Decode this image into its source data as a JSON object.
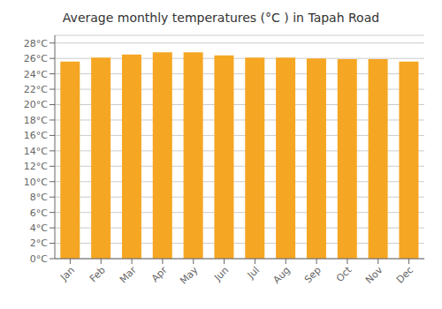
{
  "chart_data": {
    "type": "bar",
    "title": "Average monthly temperatures (°C ) in Tapah Road",
    "categories": [
      "Jan",
      "Feb",
      "Mar",
      "Apr",
      "May",
      "Jun",
      "Jul",
      "Aug",
      "Sep",
      "Oct",
      "Nov",
      "Dec"
    ],
    "values": [
      25.6,
      26.1,
      26.5,
      26.8,
      26.8,
      26.4,
      26.1,
      26.1,
      26.0,
      25.9,
      25.9,
      25.6
    ],
    "color": "#F5A623",
    "ylim": [
      0,
      29
    ],
    "yticks": [
      {
        "value": 0,
        "label": "0°C"
      },
      {
        "value": 2,
        "label": "2°C"
      },
      {
        "value": 4,
        "label": "4°C"
      },
      {
        "value": 6,
        "label": "6°C"
      },
      {
        "value": 8,
        "label": "8°C"
      },
      {
        "value": 10,
        "label": "10°C"
      },
      {
        "value": 12,
        "label": "12°C"
      },
      {
        "value": 14,
        "label": "14°C"
      },
      {
        "value": 16,
        "label": "16°C"
      },
      {
        "value": 18,
        "label": "18°C"
      },
      {
        "value": 20,
        "label": "20°C"
      },
      {
        "value": 22,
        "label": "22°C"
      },
      {
        "value": 24,
        "label": "24°C"
      },
      {
        "value": 26,
        "label": "26°C"
      },
      {
        "value": 28,
        "label": "28°C"
      }
    ],
    "grid": true
  }
}
